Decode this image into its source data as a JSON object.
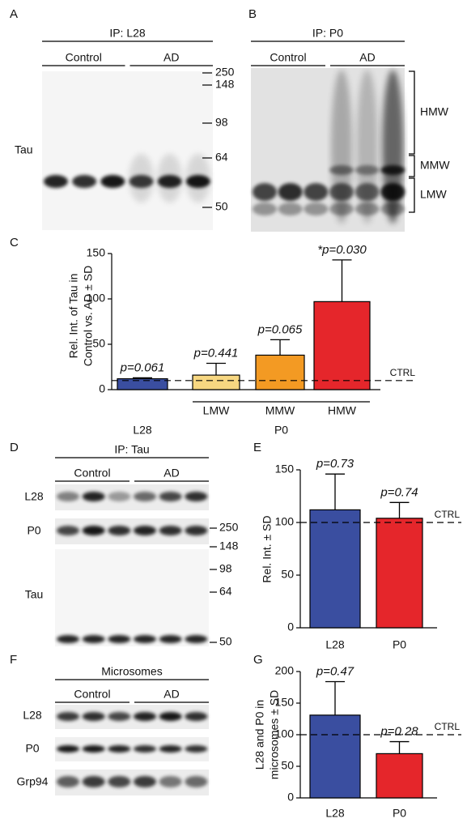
{
  "panel_letters": [
    "A",
    "B",
    "C",
    "D",
    "E",
    "F",
    "G"
  ],
  "blot_a": {
    "title": "IP: L28",
    "groups": [
      "Control",
      "AD"
    ],
    "row_label": "Tau"
  },
  "markers_ab": [
    250,
    148,
    98,
    64,
    50
  ],
  "blot_b": {
    "title": "IP: P0",
    "groups": [
      "Control",
      "AD"
    ],
    "regions": [
      "HMW",
      "MMW",
      "LMW"
    ]
  },
  "blot_d": {
    "title": "IP: Tau",
    "groups": [
      "Control",
      "AD"
    ],
    "row_labels": [
      "L28",
      "P0",
      "Tau"
    ],
    "markers": [
      250,
      148,
      98,
      64,
      50
    ]
  },
  "blot_f": {
    "title": "Microsomes",
    "groups": [
      "Control",
      "AD"
    ],
    "row_labels": [
      "L28",
      "P0",
      "Grp94"
    ]
  },
  "chart_data": [
    {
      "type": "bar",
      "ylabel": [
        "Rel. Int. of Tau in",
        "Control vs. AD ± SD"
      ],
      "categories": [
        "L28",
        "LMW",
        "MMW",
        "HMW"
      ],
      "group_label": "P0",
      "values": [
        12,
        16,
        38,
        97
      ],
      "errors": [
        1,
        13,
        17,
        46
      ],
      "colors": [
        "#3a4ea0",
        "#f7d781",
        "#f39a23",
        "#e5262b"
      ],
      "annotations": [
        "p=0.061",
        "p=0.441",
        "p=0.065",
        "*p=0.030"
      ],
      "reference": {
        "value": 10,
        "label": "CTRL"
      },
      "ylim": [
        0,
        150
      ],
      "yticks": [
        0,
        50,
        100,
        150
      ]
    },
    {
      "type": "bar",
      "ylabel": [
        "Rel. Int. ± SD"
      ],
      "categories": [
        "L28",
        "P0"
      ],
      "values": [
        112,
        104
      ],
      "errors": [
        34,
        15
      ],
      "colors": [
        "#3a4ea0",
        "#e5262b"
      ],
      "annotations": [
        "p=0.73",
        "p=0.74"
      ],
      "reference": {
        "value": 100,
        "label": "CTRL"
      },
      "ylim": [
        0,
        150
      ],
      "yticks": [
        0,
        50,
        100,
        150
      ]
    },
    {
      "type": "bar",
      "ylabel": [
        "L28 and P0 in",
        "microsomes ± SD"
      ],
      "categories": [
        "L28",
        "P0"
      ],
      "values": [
        131,
        70
      ],
      "errors": [
        53,
        19
      ],
      "colors": [
        "#3a4ea0",
        "#e5262b"
      ],
      "annotations": [
        "p=0.47",
        "p=0.28"
      ],
      "reference": {
        "value": 100,
        "label": "CTRL"
      },
      "ylim": [
        0,
        200
      ],
      "yticks": [
        0,
        50,
        100,
        150,
        200
      ]
    }
  ]
}
